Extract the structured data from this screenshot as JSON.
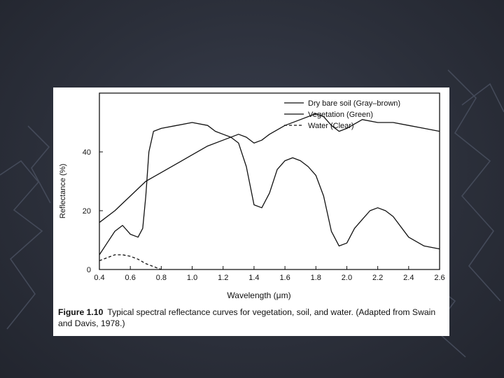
{
  "colors": {
    "background": "#2c303b",
    "paper": "#ffffff",
    "ink": "#111111"
  },
  "chart_data": {
    "type": "line",
    "title": "",
    "xlabel": "Wavelength (μm)",
    "ylabel": "Reflectance (%)",
    "xlim": [
      0.4,
      2.6
    ],
    "ylim": [
      0,
      60
    ],
    "x_ticks": [
      "0.4",
      "0.6",
      "0.8",
      "1.0",
      "1.2",
      "1.4",
      "1.6",
      "1.8",
      "2.0",
      "2.2",
      "2.4",
      "2.6"
    ],
    "y_ticks": [
      "0",
      "20",
      "40"
    ],
    "grid": false,
    "legend_position": "top-right",
    "series": [
      {
        "name": "Dry bare soil (Gray–brown)",
        "style": "solid",
        "x": [
          0.4,
          0.5,
          0.6,
          0.7,
          0.8,
          0.9,
          1.0,
          1.1,
          1.2,
          1.3,
          1.35,
          1.4,
          1.45,
          1.5,
          1.6,
          1.7,
          1.8,
          1.85,
          1.9,
          1.95,
          2.0,
          2.1,
          2.2,
          2.3,
          2.4,
          2.5,
          2.6
        ],
        "y": [
          16,
          20,
          25,
          30,
          33,
          36,
          39,
          42,
          44,
          46,
          45,
          43,
          44,
          46,
          49,
          51,
          53,
          52,
          49,
          47,
          48,
          51,
          50,
          50,
          49,
          48,
          47
        ]
      },
      {
        "name": "Vegetation (Green)",
        "style": "solid",
        "x": [
          0.4,
          0.45,
          0.5,
          0.55,
          0.6,
          0.65,
          0.68,
          0.7,
          0.72,
          0.75,
          0.8,
          0.9,
          1.0,
          1.1,
          1.15,
          1.2,
          1.25,
          1.3,
          1.35,
          1.4,
          1.45,
          1.5,
          1.55,
          1.6,
          1.65,
          1.7,
          1.75,
          1.8,
          1.85,
          1.9,
          1.95,
          2.0,
          2.05,
          2.1,
          2.15,
          2.2,
          2.25,
          2.3,
          2.4,
          2.5,
          2.6
        ],
        "y": [
          5,
          9,
          13,
          15,
          12,
          11,
          14,
          25,
          40,
          47,
          48,
          49,
          50,
          49,
          47,
          46,
          45,
          43,
          35,
          22,
          21,
          26,
          34,
          37,
          38,
          37,
          35,
          32,
          25,
          13,
          8,
          9,
          14,
          17,
          20,
          21,
          20,
          18,
          11,
          8,
          7
        ]
      },
      {
        "name": "Water (Clear)",
        "style": "dashed",
        "x": [
          0.4,
          0.45,
          0.5,
          0.55,
          0.6,
          0.65,
          0.7,
          0.75,
          0.8
        ],
        "y": [
          3,
          4,
          5,
          5,
          4.5,
          3.5,
          2,
          1,
          0
        ]
      }
    ]
  },
  "caption": {
    "label": "Figure 1.10",
    "text": "Typical spectral reflectance curves for vegetation, soil, and water. (Adapted from Swain and Davis, 1978.)"
  }
}
